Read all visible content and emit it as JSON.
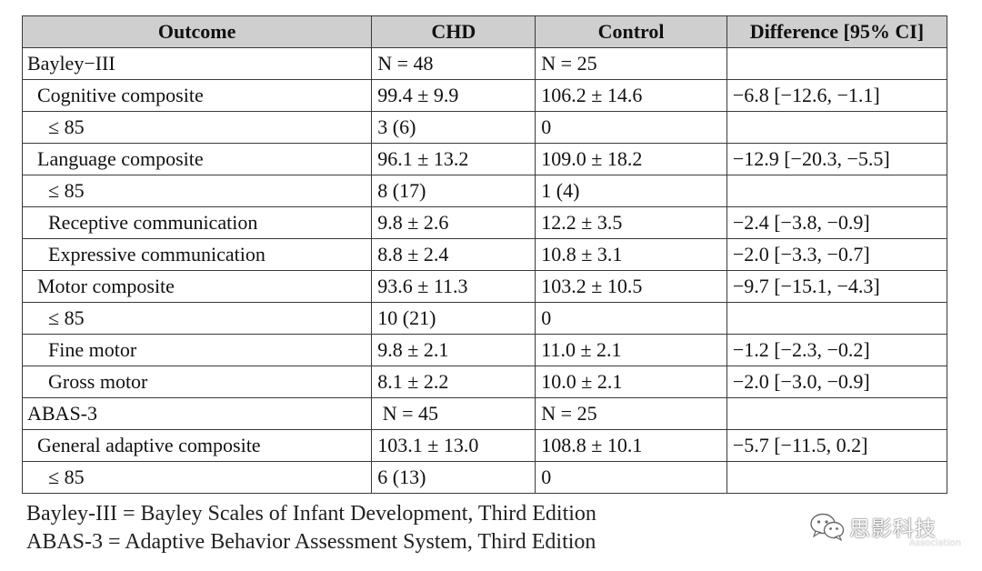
{
  "table": {
    "headers": [
      "Outcome",
      "CHD",
      "Control",
      "Difference [95% CI]"
    ],
    "rows": [
      {
        "outcome": "Bayley−III",
        "chd": "N = 48",
        "control": "N = 25",
        "difference": ""
      },
      {
        "outcome": "Cognitive composite",
        "chd": "99.4 ± 9.9",
        "control": "106.2 ± 14.6",
        "difference": "−6.8 [−12.6, −1.1]"
      },
      {
        "outcome": "≤ 85",
        "chd": "3 (6)",
        "control": "0",
        "difference": ""
      },
      {
        "outcome": "Language composite",
        "chd": "96.1 ± 13.2",
        "control": "109.0 ± 18.2",
        "difference": "−12.9 [−20.3, −5.5]"
      },
      {
        "outcome": "≤ 85",
        "chd": "8 (17)",
        "control": "1 (4)",
        "difference": ""
      },
      {
        "outcome": "Receptive communication",
        "chd": "9.8 ± 2.6",
        "control": "12.2 ± 3.5",
        "difference": "−2.4 [−3.8, −0.9]"
      },
      {
        "outcome": "Expressive communication",
        "chd": "8.8 ± 2.4",
        "control": "10.8 ± 3.1",
        "difference": "−2.0 [−3.3, −0.7]"
      },
      {
        "outcome": "Motor composite",
        "chd": "93.6 ± 11.3",
        "control": "103.2 ± 10.5",
        "difference": "−9.7 [−15.1, −4.3]"
      },
      {
        "outcome": "≤ 85",
        "chd": "10 (21)",
        "control": "0",
        "difference": ""
      },
      {
        "outcome": "Fine motor",
        "chd": "9.8 ± 2.1",
        "control": "11.0 ± 2.1",
        "difference": "−1.2 [−2.3, −0.2]"
      },
      {
        "outcome": "Gross motor",
        "chd": "8.1 ± 2.2",
        "control": "10.0 ± 2.1",
        "difference": "−2.0 [−3.0, −0.9]"
      },
      {
        "outcome": "ABAS-3",
        "chd": " N = 45",
        "control": "N = 25",
        "difference": ""
      },
      {
        "outcome": "General adaptive composite",
        "chd": "103.1 ± 13.0",
        "control": "108.8 ± 10.1",
        "difference": "−5.7 [−11.5, 0.2]"
      },
      {
        "outcome": "≤ 85",
        "chd": "6 (13)",
        "control": "0",
        "difference": ""
      }
    ]
  },
  "footnotes": [
    "Bayley-III = Bayley Scales of Infant Development, Third Edition",
    "ABAS-3 = Adaptive Behavior Assessment System, Third Edition"
  ],
  "watermark": {
    "text": "思影科技",
    "subtext": "Association",
    "icon": "wechat-icon"
  },
  "colors": {
    "header_bg": "#cfcfcf",
    "border": "#3a3a3a",
    "text": "#111111"
  }
}
